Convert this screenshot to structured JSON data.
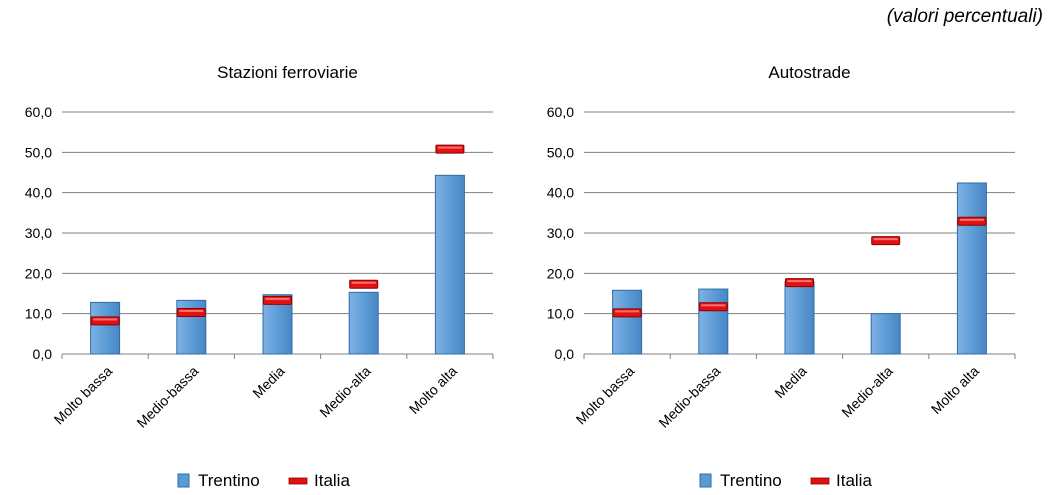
{
  "note": "(valori percentuali)",
  "colors": {
    "trentino": "#5b9bd5",
    "trentino_edge": "#2e6da4",
    "italia": "#e31212",
    "grid": "#808080"
  },
  "chart_data": [
    {
      "type": "bar",
      "title": "Stazioni ferroviarie",
      "categories": [
        "Molto bassa",
        "Medio-bassa",
        "Media",
        "Medio-alta",
        "Molto alta"
      ],
      "ylim": [
        0,
        60
      ],
      "yticks": [
        "0,0",
        "10,0",
        "20,0",
        "30,0",
        "40,0",
        "50,0",
        "60,0"
      ],
      "grid": true,
      "legend": "bottom",
      "series": [
        {
          "name": "Trentino",
          "kind": "bar",
          "values": [
            12.8,
            13.3,
            14.7,
            15.3,
            44.3
          ]
        },
        {
          "name": "Italia",
          "kind": "marker",
          "values": [
            8.2,
            10.3,
            13.3,
            17.3,
            50.8
          ]
        }
      ]
    },
    {
      "type": "bar",
      "title": "Autostrade",
      "categories": [
        "Molto bassa",
        "Medio-bassa",
        "Media",
        "Medio-alta",
        "Molto alta"
      ],
      "ylim": [
        0,
        60
      ],
      "yticks": [
        "0,0",
        "10,0",
        "20,0",
        "30,0",
        "40,0",
        "50,0",
        "60,0"
      ],
      "grid": true,
      "legend": "bottom",
      "series": [
        {
          "name": "Trentino",
          "kind": "bar",
          "values": [
            15.8,
            16.1,
            17.9,
            10.0,
            42.4
          ]
        },
        {
          "name": "Italia",
          "kind": "marker",
          "values": [
            10.2,
            11.7,
            17.7,
            28.1,
            32.9
          ]
        }
      ]
    }
  ]
}
